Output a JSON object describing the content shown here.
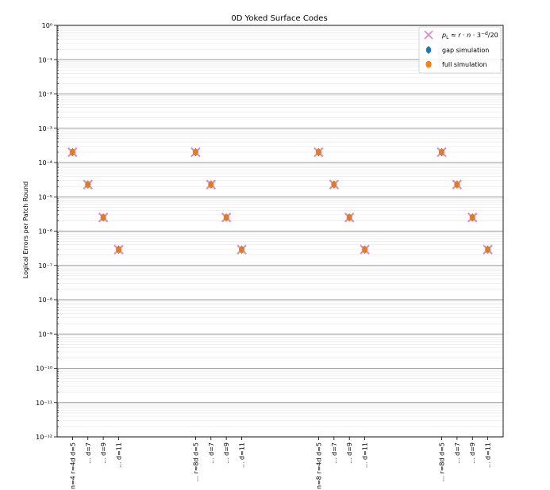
{
  "chart_data": {
    "type": "scatter",
    "title": "0D Yoked Surface Codes",
    "xlabel": "",
    "ylabel": "Logical Errors per Patch Round",
    "yscale": "log",
    "ylim_exp": [
      -12,
      0
    ],
    "yticks": [
      {
        "exp": 0,
        "label": "10⁰"
      },
      {
        "exp": -1,
        "label": "10⁻¹"
      },
      {
        "exp": -2,
        "label": "10⁻²"
      },
      {
        "exp": -3,
        "label": "10⁻³"
      },
      {
        "exp": -4,
        "label": "10⁻⁴"
      },
      {
        "exp": -5,
        "label": "10⁻⁵"
      },
      {
        "exp": -6,
        "label": "10⁻⁶"
      },
      {
        "exp": -7,
        "label": "10⁻⁷"
      },
      {
        "exp": -8,
        "label": "10⁻⁸"
      },
      {
        "exp": -9,
        "label": "10⁻⁹"
      },
      {
        "exp": -10,
        "label": "10⁻¹⁰"
      },
      {
        "exp": -11,
        "label": "10⁻¹¹"
      },
      {
        "exp": -12,
        "label": "10⁻¹²"
      }
    ],
    "grid": true,
    "legend_position": "top-right",
    "categories": [
      "n=4 r=4d d=5",
      "... d=7",
      "... d=9",
      "... d=11",
      "... r=8d d=5",
      "... d=7",
      "... d=9",
      "... d=11",
      "n=8 r=4d d=5",
      "... d=7",
      "... d=9",
      "... d=11",
      "... r=8d d=5",
      "... d=7",
      "... d=9",
      "... d=11"
    ],
    "x_positions": [
      0,
      1,
      2,
      3,
      8,
      9,
      10,
      11,
      16,
      17,
      18,
      19,
      24,
      25,
      26,
      27
    ],
    "x_range": [
      -1,
      28
    ],
    "series": [
      {
        "name": "p_L ≈ r·n·3^(-d)/20",
        "marker": "x",
        "color": "#d98cd0",
        "values": [
          0.0002,
          2.29e-05,
          2.5e-06,
          2.9e-07,
          0.0002,
          2.29e-05,
          2.5e-06,
          2.9e-07,
          0.0002,
          2.29e-05,
          2.5e-06,
          2.9e-07,
          0.0002,
          2.29e-05,
          2.5e-06,
          2.9e-07
        ]
      },
      {
        "name": "gap simulation",
        "marker": "o",
        "color": "#1f77b4",
        "values": [
          0.0002,
          2.29e-05,
          2.5e-06,
          2.9e-07,
          0.0002,
          2.29e-05,
          2.5e-06,
          2.9e-07,
          0.0002,
          2.29e-05,
          2.5e-06,
          2.9e-07,
          0.0002,
          2.29e-05,
          2.5e-06,
          2.9e-07
        ]
      },
      {
        "name": "full simulation",
        "marker": "o",
        "color": "#ff7f0e",
        "values": [
          0.0002,
          2.29e-05,
          2.5e-06,
          2.9e-07,
          0.0002,
          2.29e-05,
          2.5e-06,
          2.9e-07,
          0.0002,
          2.29e-05,
          2.5e-06,
          2.9e-07,
          0.0002,
          2.29e-05,
          2.5e-06,
          2.9e-07
        ]
      }
    ]
  }
}
